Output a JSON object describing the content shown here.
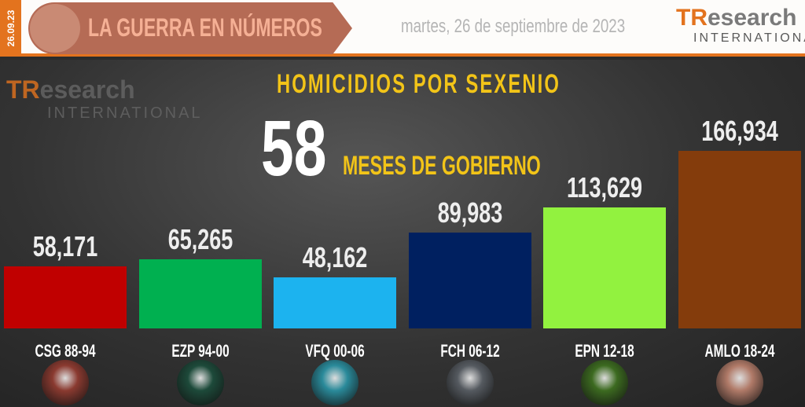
{
  "header": {
    "date_tag": "26.09.23",
    "banner_title": "LA GUERRA EN NÚMEROS",
    "date_text": "martes, 26 de septiembre de 2023",
    "logo": {
      "part1": "TR",
      "part2": "esearch",
      "part3": "INTERNATIONAL"
    }
  },
  "chart_data": {
    "type": "bar",
    "title": "HOMICIDIOS POR SEXENIO",
    "subtitle_number": "58",
    "subtitle_text": "MESES DE GOBIERNO",
    "categories": [
      "CSG 88-94",
      "EZP 94-00",
      "VFQ 00-06",
      "FCH 06-12",
      "EPN 12-18",
      "AMLO 18-24"
    ],
    "values": [
      58171,
      65265,
      48162,
      89983,
      113629,
      166934
    ],
    "value_labels": [
      "58,171",
      "65,265",
      "48,162",
      "89,983",
      "113,629",
      "166,934"
    ],
    "colors": [
      "#c00000",
      "#00b050",
      "#1cb3ef",
      "#002060",
      "#92f23f",
      "#843c0c"
    ],
    "photo_tints": [
      "#8a3a30",
      "#1d4a3a",
      "#2a8a9a",
      "#555a60",
      "#3c6a20",
      "#b07a68"
    ],
    "ylim": [
      0,
      166934
    ],
    "grid": false,
    "legend": "none"
  }
}
